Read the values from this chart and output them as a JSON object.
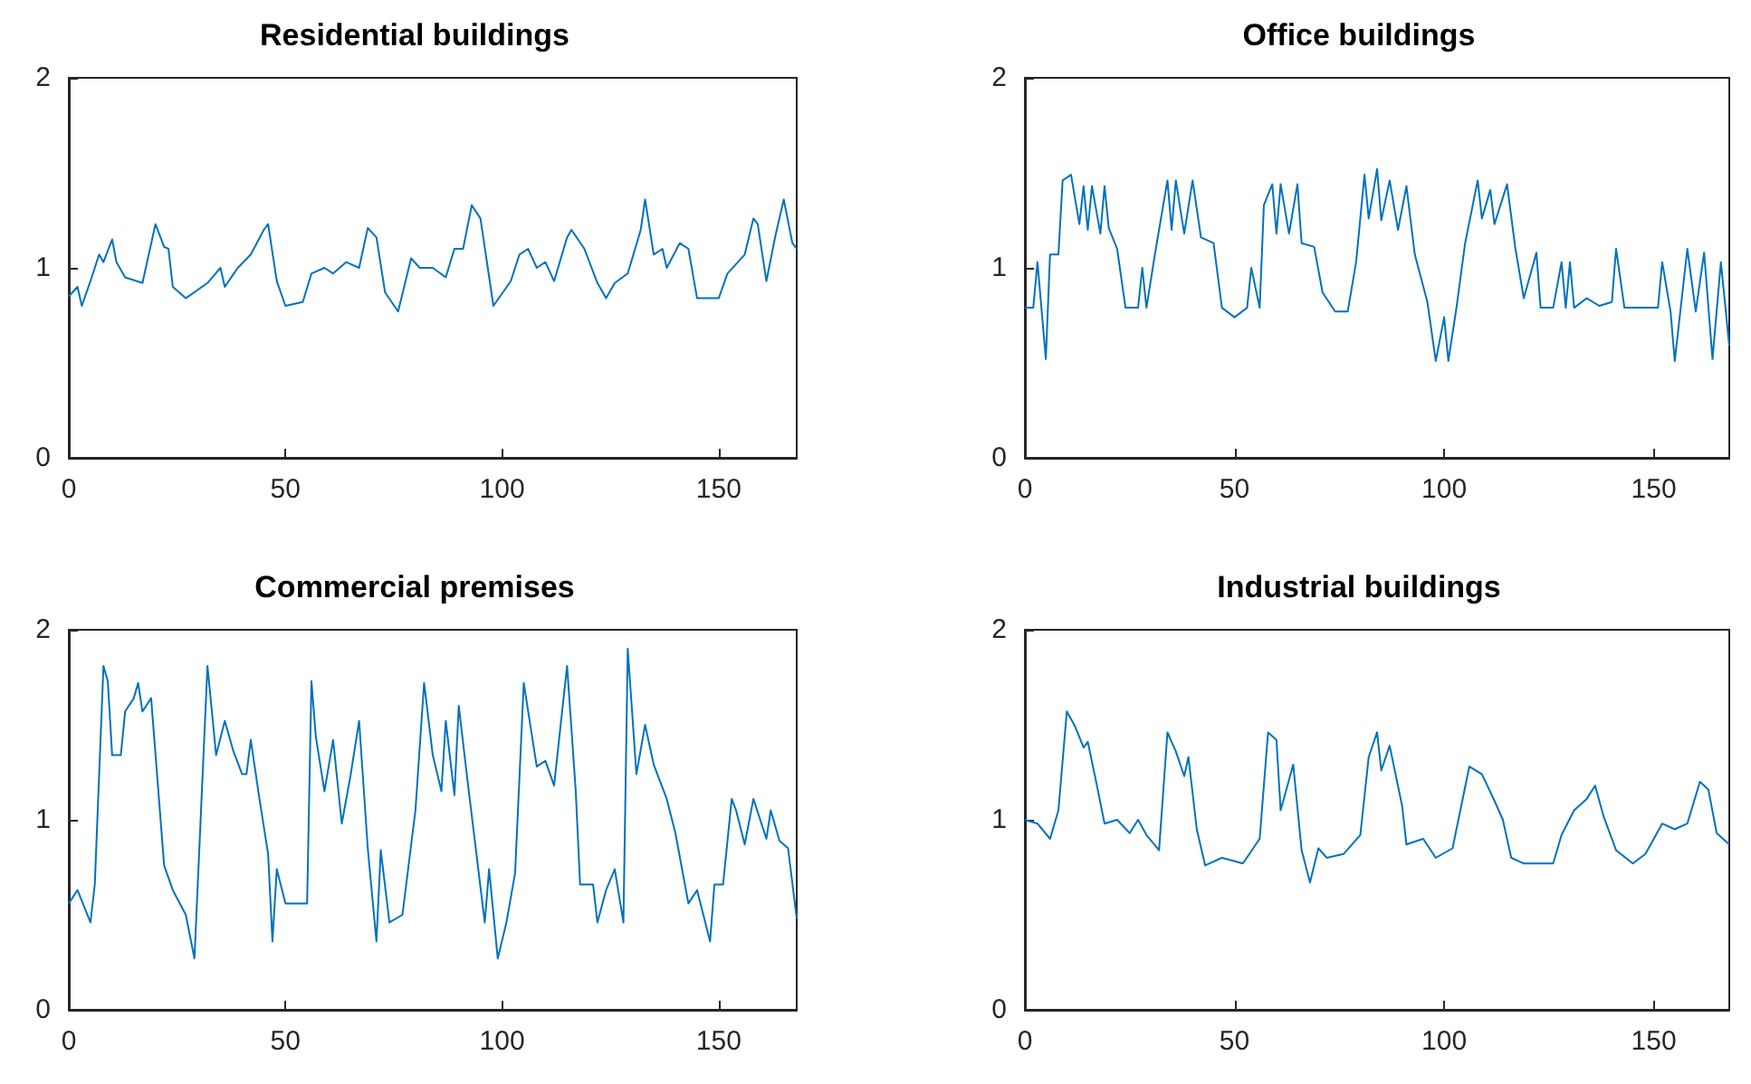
{
  "chart_data": [
    {
      "type": "line",
      "title": "Residential buildings",
      "color": "#0072bd",
      "xlim": [
        0,
        168
      ],
      "ylim": [
        0,
        2
      ],
      "xticks": [
        0,
        50,
        100,
        150
      ],
      "yticks": [
        0,
        1,
        2
      ],
      "x": [
        0,
        2,
        3,
        5,
        7,
        8,
        10,
        11,
        13,
        17,
        20,
        22,
        23,
        24,
        27,
        32,
        35,
        36,
        39,
        42,
        45,
        46,
        48,
        50,
        54,
        56,
        59,
        61,
        64,
        67,
        69,
        71,
        73,
        76,
        79,
        81,
        84,
        87,
        89,
        91,
        93,
        95,
        98,
        102,
        104,
        106,
        108,
        110,
        112,
        115,
        116,
        119,
        122,
        124,
        126,
        129,
        132,
        133,
        135,
        137,
        138,
        141,
        143,
        145,
        150,
        152,
        156,
        158,
        159,
        161,
        163,
        165,
        167,
        168
      ],
      "values": [
        0.85,
        0.9,
        0.8,
        0.93,
        1.07,
        1.03,
        1.15,
        1.03,
        0.95,
        0.92,
        1.23,
        1.11,
        1.1,
        0.9,
        0.84,
        0.92,
        1.0,
        0.9,
        1.0,
        1.07,
        1.2,
        1.23,
        0.93,
        0.8,
        0.82,
        0.97,
        1.0,
        0.97,
        1.03,
        1.0,
        1.21,
        1.16,
        0.87,
        0.77,
        1.05,
        1.0,
        1.0,
        0.95,
        1.1,
        1.1,
        1.33,
        1.26,
        0.8,
        0.93,
        1.07,
        1.1,
        1.0,
        1.03,
        0.93,
        1.16,
        1.2,
        1.1,
        0.92,
        0.84,
        0.92,
        0.97,
        1.2,
        1.36,
        1.07,
        1.1,
        1.0,
        1.13,
        1.1,
        0.84,
        0.84,
        0.97,
        1.07,
        1.26,
        1.23,
        0.93,
        1.16,
        1.36,
        1.13,
        1.1
      ]
    },
    {
      "type": "line",
      "title": "Office buildings",
      "color": "#0072bd",
      "xlim": [
        0,
        168
      ],
      "ylim": [
        0,
        2
      ],
      "xticks": [
        0,
        50,
        100,
        150
      ],
      "yticks": [
        0,
        1,
        2
      ],
      "x": [
        0,
        2,
        3,
        5,
        6,
        8,
        9,
        11,
        13,
        14,
        15,
        16,
        18,
        19,
        20,
        22,
        24,
        27,
        28,
        29,
        31,
        34,
        35,
        36,
        38,
        40,
        42,
        45,
        47,
        50,
        53,
        54,
        56,
        57,
        59,
        60,
        61,
        63,
        65,
        66,
        69,
        71,
        74,
        77,
        79,
        81,
        82,
        84,
        85,
        87,
        89,
        91,
        93,
        96,
        98,
        100,
        101,
        103,
        105,
        108,
        109,
        111,
        112,
        115,
        117,
        119,
        122,
        123,
        126,
        128,
        129,
        130,
        131,
        134,
        137,
        140,
        141,
        143,
        151,
        152,
        154,
        155,
        158,
        160,
        162,
        164,
        166,
        168
      ],
      "values": [
        0.79,
        0.79,
        1.03,
        0.52,
        1.07,
        1.07,
        1.46,
        1.49,
        1.23,
        1.43,
        1.2,
        1.43,
        1.18,
        1.43,
        1.21,
        1.1,
        0.79,
        0.79,
        1.0,
        0.79,
        1.07,
        1.46,
        1.2,
        1.46,
        1.18,
        1.46,
        1.16,
        1.13,
        0.79,
        0.74,
        0.79,
        1.0,
        0.79,
        1.33,
        1.44,
        1.18,
        1.44,
        1.18,
        1.44,
        1.13,
        1.11,
        0.87,
        0.77,
        0.77,
        1.03,
        1.49,
        1.26,
        1.52,
        1.25,
        1.46,
        1.2,
        1.43,
        1.07,
        0.82,
        0.51,
        0.74,
        0.51,
        0.8,
        1.13,
        1.46,
        1.26,
        1.41,
        1.23,
        1.44,
        1.1,
        0.84,
        1.08,
        0.79,
        0.79,
        1.03,
        0.79,
        1.03,
        0.79,
        0.84,
        0.8,
        0.82,
        1.1,
        0.79,
        0.79,
        1.03,
        0.77,
        0.51,
        1.1,
        0.77,
        1.08,
        0.52,
        1.03,
        0.59
      ]
    },
    {
      "type": "line",
      "title": "Commercial premises",
      "color": "#0072bd",
      "xlim": [
        0,
        168
      ],
      "ylim": [
        0,
        2
      ],
      "xticks": [
        0,
        50,
        100,
        150
      ],
      "yticks": [
        0,
        1,
        2
      ],
      "x": [
        0,
        2,
        5,
        6,
        8,
        9,
        10,
        12,
        13,
        15,
        16,
        17,
        19,
        22,
        24,
        27,
        29,
        32,
        34,
        36,
        38,
        40,
        41,
        42,
        44,
        46,
        47,
        48,
        50,
        53,
        55,
        56,
        57,
        59,
        61,
        63,
        65,
        67,
        69,
        71,
        72,
        74,
        77,
        80,
        82,
        84,
        86,
        87,
        89,
        90,
        92,
        96,
        97,
        99,
        101,
        103,
        105,
        108,
        110,
        112,
        115,
        117,
        118,
        121,
        122,
        124,
        126,
        128,
        129,
        131,
        133,
        135,
        138,
        140,
        143,
        145,
        148,
        149,
        151,
        153,
        154,
        156,
        158,
        161,
        162,
        164,
        166,
        168
      ],
      "values": [
        0.56,
        0.63,
        0.46,
        0.66,
        1.81,
        1.73,
        1.34,
        1.34,
        1.57,
        1.64,
        1.72,
        1.57,
        1.64,
        0.76,
        0.63,
        0.5,
        0.27,
        1.81,
        1.34,
        1.52,
        1.36,
        1.24,
        1.24,
        1.42,
        1.11,
        0.82,
        0.36,
        0.74,
        0.56,
        0.56,
        0.56,
        1.73,
        1.44,
        1.15,
        1.42,
        0.98,
        1.23,
        1.52,
        0.85,
        0.36,
        0.84,
        0.46,
        0.5,
        1.05,
        1.72,
        1.34,
        1.15,
        1.52,
        1.13,
        1.6,
        1.21,
        0.46,
        0.74,
        0.27,
        0.46,
        0.72,
        1.72,
        1.28,
        1.31,
        1.18,
        1.81,
        1.15,
        0.66,
        0.66,
        0.46,
        0.63,
        0.74,
        0.46,
        1.9,
        1.24,
        1.5,
        1.29,
        1.11,
        0.93,
        0.56,
        0.63,
        0.36,
        0.66,
        0.66,
        1.11,
        1.05,
        0.87,
        1.11,
        0.9,
        1.05,
        0.89,
        0.85,
        0.48
      ]
    },
    {
      "type": "line",
      "title": "Industrial buildings",
      "color": "#0072bd",
      "xlim": [
        0,
        168
      ],
      "ylim": [
        0,
        2
      ],
      "xticks": [
        0,
        50,
        100,
        150
      ],
      "yticks": [
        0,
        1,
        2
      ],
      "x": [
        0,
        3,
        6,
        8,
        10,
        12,
        14,
        15,
        17,
        19,
        22,
        25,
        27,
        29,
        32,
        34,
        36,
        38,
        39,
        41,
        43,
        47,
        52,
        56,
        58,
        60,
        61,
        64,
        66,
        68,
        70,
        72,
        76,
        80,
        82,
        84,
        85,
        87,
        90,
        91,
        95,
        98,
        102,
        106,
        109,
        112,
        114,
        116,
        119,
        126,
        128,
        131,
        134,
        136,
        138,
        141,
        145,
        148,
        152,
        155,
        158,
        161,
        163,
        165,
        168
      ],
      "values": [
        1.0,
        0.98,
        0.9,
        1.05,
        1.57,
        1.49,
        1.38,
        1.41,
        1.2,
        0.98,
        1.0,
        0.93,
        1.0,
        0.92,
        0.84,
        1.46,
        1.36,
        1.23,
        1.33,
        0.95,
        0.76,
        0.8,
        0.77,
        0.9,
        1.46,
        1.42,
        1.05,
        1.29,
        0.84,
        0.67,
        0.85,
        0.8,
        0.82,
        0.92,
        1.33,
        1.46,
        1.26,
        1.39,
        1.07,
        0.87,
        0.9,
        0.8,
        0.85,
        1.28,
        1.24,
        1.1,
        1.0,
        0.8,
        0.77,
        0.77,
        0.92,
        1.05,
        1.11,
        1.18,
        1.02,
        0.84,
        0.77,
        0.82,
        0.98,
        0.95,
        0.98,
        1.2,
        1.16,
        0.93,
        0.87
      ]
    }
  ]
}
